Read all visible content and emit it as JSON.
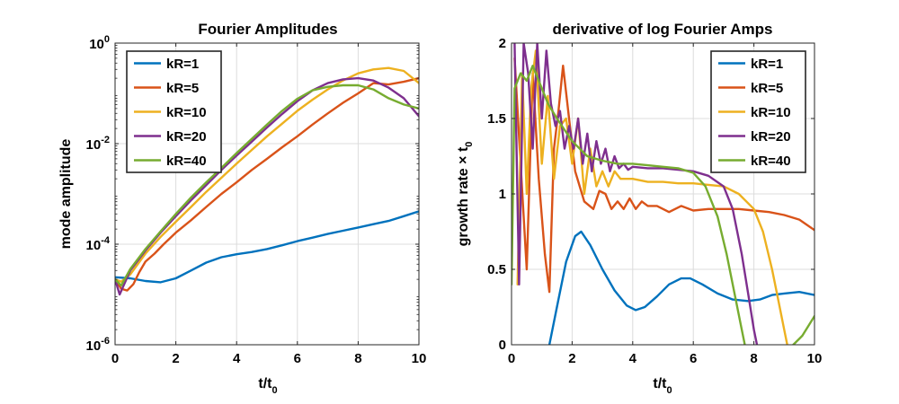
{
  "chart_data": [
    {
      "type": "line",
      "title": "Fourier Amplitudes",
      "xlabel": "t/t",
      "xlabel_sub": "0",
      "ylabel": "mode amplitude",
      "xlim": [
        0,
        10
      ],
      "ylim": [
        1e-06,
        1
      ],
      "yscale": "log",
      "grid": true,
      "legend": "top-left",
      "x_ticks": [
        "0",
        "2",
        "4",
        "6",
        "8",
        "10"
      ],
      "y_ticks": [
        {
          "base": "10",
          "exp": "-6",
          "value": 1e-06
        },
        {
          "base": "10",
          "exp": "-4",
          "value": 0.0001
        },
        {
          "base": "10",
          "exp": "-2",
          "value": 0.01
        },
        {
          "base": "10",
          "exp": "0",
          "value": 1
        }
      ],
      "series": [
        {
          "name": "kR=1",
          "color": "#0072BD",
          "x": [
            0,
            0.5,
            1.0,
            1.5,
            2.0,
            2.5,
            3.0,
            3.5,
            4.0,
            4.5,
            5.0,
            5.5,
            6.0,
            6.5,
            7.0,
            7.5,
            8.0,
            8.5,
            9.0,
            9.5,
            10.0
          ],
          "y": [
            2.2e-05,
            2.1e-05,
            1.85e-05,
            1.75e-05,
            2.1e-05,
            3e-05,
            4.3e-05,
            5.5e-05,
            6.3e-05,
            7e-05,
            8e-05,
            9.5e-05,
            0.000115,
            0.000135,
            0.00016,
            0.000185,
            0.000215,
            0.00025,
            0.00029,
            0.00036,
            0.00045
          ]
        },
        {
          "name": "kR=5",
          "color": "#D95319",
          "x": [
            0,
            0.2,
            0.4,
            0.6,
            0.8,
            1.0,
            1.3,
            1.6,
            2.0,
            2.5,
            3.0,
            3.5,
            4.0,
            4.5,
            5.0,
            5.5,
            6.0,
            6.5,
            7.0,
            7.5,
            8.0,
            8.5,
            9.0,
            9.5,
            10.0
          ],
          "y": [
            2e-05,
            1.3e-05,
            1.2e-05,
            1.6e-05,
            2.8e-05,
            4.5e-05,
            6.5e-05,
            0.0001,
            0.00017,
            0.0003,
            0.00055,
            0.001,
            0.0017,
            0.003,
            0.005,
            0.0085,
            0.014,
            0.024,
            0.04,
            0.065,
            0.1,
            0.16,
            0.15,
            0.17,
            0.2
          ]
        },
        {
          "name": "kR=10",
          "color": "#EDB120",
          "x": [
            0,
            0.2,
            0.5,
            1.0,
            1.5,
            2.0,
            2.5,
            3.0,
            3.5,
            4.0,
            4.5,
            5.0,
            5.5,
            6.0,
            6.5,
            7.0,
            7.5,
            8.0,
            8.5,
            9.0,
            9.5,
            10.0
          ],
          "y": [
            2e-05,
            1.8e-05,
            2.5e-05,
            6.5e-05,
            0.00014,
            0.00028,
            0.00055,
            0.0011,
            0.0021,
            0.004,
            0.0075,
            0.014,
            0.025,
            0.045,
            0.075,
            0.12,
            0.18,
            0.25,
            0.3,
            0.32,
            0.28,
            0.16
          ]
        },
        {
          "name": "kR=20",
          "color": "#7E2F8E",
          "x": [
            0,
            0.15,
            0.5,
            1.0,
            1.5,
            2.0,
            2.5,
            3.0,
            3.5,
            4.0,
            4.5,
            5.0,
            5.5,
            6.0,
            6.5,
            7.0,
            7.5,
            8.0,
            8.5,
            9.0,
            9.5,
            10.0
          ],
          "y": [
            2e-05,
            1e-05,
            3e-05,
            7.5e-05,
            0.00017,
            0.00036,
            0.00075,
            0.0015,
            0.003,
            0.0058,
            0.011,
            0.021,
            0.039,
            0.07,
            0.115,
            0.16,
            0.19,
            0.2,
            0.18,
            0.13,
            0.08,
            0.035
          ]
        },
        {
          "name": "kR=40",
          "color": "#77AC30",
          "x": [
            0,
            0.2,
            0.5,
            1.0,
            1.5,
            2.0,
            2.5,
            3.0,
            3.5,
            4.0,
            4.5,
            5.0,
            5.5,
            6.0,
            6.5,
            7.0,
            7.5,
            8.0,
            8.5,
            9.0,
            9.5,
            10.0
          ],
          "y": [
            2e-05,
            1.5e-05,
            3.2e-05,
            8e-05,
            0.00018,
            0.0004,
            0.00085,
            0.0017,
            0.0033,
            0.0065,
            0.0125,
            0.024,
            0.045,
            0.078,
            0.115,
            0.135,
            0.145,
            0.145,
            0.12,
            0.08,
            0.06,
            0.05
          ]
        }
      ]
    },
    {
      "type": "line",
      "title": "derivative of log Fourier Amps",
      "xlabel": "t/t",
      "xlabel_sub": "0",
      "ylabel": "growth rate × t",
      "ylabel_sub": "0",
      "xlim": [
        0,
        10
      ],
      "ylim": [
        0,
        2
      ],
      "grid": true,
      "legend": "top-right",
      "x_ticks": [
        "0",
        "2",
        "4",
        "6",
        "8",
        "10"
      ],
      "y_ticks": [
        "0",
        "0.5",
        "1",
        "1.5",
        "2"
      ],
      "series": [
        {
          "name": "kR=1",
          "color": "#0072BD",
          "x": [
            1.25,
            1.5,
            1.8,
            2.1,
            2.3,
            2.6,
            3.0,
            3.4,
            3.8,
            4.1,
            4.4,
            4.8,
            5.2,
            5.6,
            5.9,
            6.3,
            6.8,
            7.3,
            7.8,
            8.2,
            8.6,
            9.0,
            9.5,
            10.0
          ],
          "y": [
            0.0,
            0.25,
            0.55,
            0.72,
            0.75,
            0.66,
            0.5,
            0.36,
            0.26,
            0.23,
            0.25,
            0.32,
            0.4,
            0.44,
            0.44,
            0.4,
            0.34,
            0.3,
            0.29,
            0.3,
            0.33,
            0.34,
            0.35,
            0.33
          ]
        },
        {
          "name": "kR=5",
          "color": "#D95319",
          "x": [
            0.1,
            0.3,
            0.5,
            0.7,
            0.9,
            1.1,
            1.25,
            1.4,
            1.55,
            1.7,
            1.9,
            2.1,
            2.4,
            2.7,
            2.9,
            3.1,
            3.3,
            3.5,
            3.7,
            3.9,
            4.1,
            4.3,
            4.5,
            4.8,
            5.2,
            5.6,
            6.0,
            6.5,
            7.0,
            7.5,
            8.0,
            8.5,
            9.0,
            9.5,
            10.0
          ],
          "y": [
            1.9,
            1.2,
            0.5,
            1.8,
            1.1,
            0.6,
            0.35,
            1.3,
            1.55,
            1.85,
            1.5,
            1.15,
            0.95,
            0.9,
            1.02,
            1.0,
            0.9,
            0.95,
            0.9,
            0.97,
            0.9,
            0.95,
            0.92,
            0.92,
            0.88,
            0.92,
            0.89,
            0.9,
            0.9,
            0.9,
            0.89,
            0.88,
            0.86,
            0.83,
            0.76
          ]
        },
        {
          "name": "kR=10",
          "color": "#EDB120",
          "x": [
            0.2,
            0.35,
            0.5,
            0.65,
            0.8,
            1.0,
            1.2,
            1.4,
            1.6,
            1.8,
            2.0,
            2.2,
            2.4,
            2.6,
            2.8,
            3.0,
            3.2,
            3.4,
            3.6,
            3.8,
            4.0,
            4.5,
            5.0,
            5.5,
            6.0,
            6.5,
            7.0,
            7.5,
            8.0,
            8.3,
            8.6,
            8.8,
            9.0,
            9.1
          ],
          "y": [
            0.4,
            1.8,
            1.0,
            1.7,
            1.95,
            1.2,
            1.65,
            1.1,
            1.45,
            1.5,
            1.2,
            1.5,
            1.0,
            1.3,
            1.05,
            1.15,
            1.05,
            1.15,
            1.1,
            1.1,
            1.1,
            1.08,
            1.08,
            1.07,
            1.07,
            1.06,
            1.05,
            1.0,
            0.9,
            0.75,
            0.5,
            0.3,
            0.1,
            0.0
          ]
        },
        {
          "name": "kR=20",
          "color": "#7E2F8E",
          "x": [
            0.1,
            0.25,
            0.4,
            0.55,
            0.7,
            0.85,
            1.0,
            1.15,
            1.3,
            1.45,
            1.6,
            1.75,
            1.9,
            2.05,
            2.2,
            2.35,
            2.5,
            2.65,
            2.8,
            2.95,
            3.1,
            3.25,
            3.4,
            3.55,
            3.7,
            3.85,
            4.0,
            4.5,
            5.0,
            5.5,
            6.0,
            6.5,
            7.0,
            7.3,
            7.6,
            7.8,
            8.0,
            8.1
          ],
          "y": [
            2.0,
            0.4,
            2.0,
            1.8,
            1.3,
            2.0,
            1.5,
            1.95,
            1.6,
            1.45,
            1.55,
            1.3,
            1.45,
            1.3,
            1.5,
            1.2,
            1.4,
            1.15,
            1.35,
            1.2,
            1.3,
            1.15,
            1.25,
            1.17,
            1.2,
            1.16,
            1.18,
            1.17,
            1.17,
            1.16,
            1.15,
            1.12,
            1.05,
            0.9,
            0.6,
            0.35,
            0.1,
            0.0
          ]
        },
        {
          "name": "kR=40",
          "color": "#77AC30",
          "x": [
            0,
            0.1,
            0.3,
            0.5,
            0.7,
            0.9,
            1.2,
            1.5,
            2.0,
            2.5,
            3.0,
            3.5,
            4.0,
            4.5,
            5.0,
            5.5,
            6.0,
            6.4,
            6.8,
            7.1,
            7.4,
            7.6,
            7.7
          ],
          "y": [
            0.4,
            1.7,
            1.8,
            1.75,
            1.85,
            1.75,
            1.6,
            1.5,
            1.35,
            1.25,
            1.22,
            1.2,
            1.2,
            1.19,
            1.18,
            1.17,
            1.14,
            1.05,
            0.85,
            0.6,
            0.3,
            0.1,
            0.0
          ]
        },
        {
          "name": "",
          "color": "#77AC30",
          "x": [
            9.3,
            9.6,
            10.0
          ],
          "y": [
            0.0,
            0.06,
            0.19
          ]
        }
      ]
    }
  ]
}
